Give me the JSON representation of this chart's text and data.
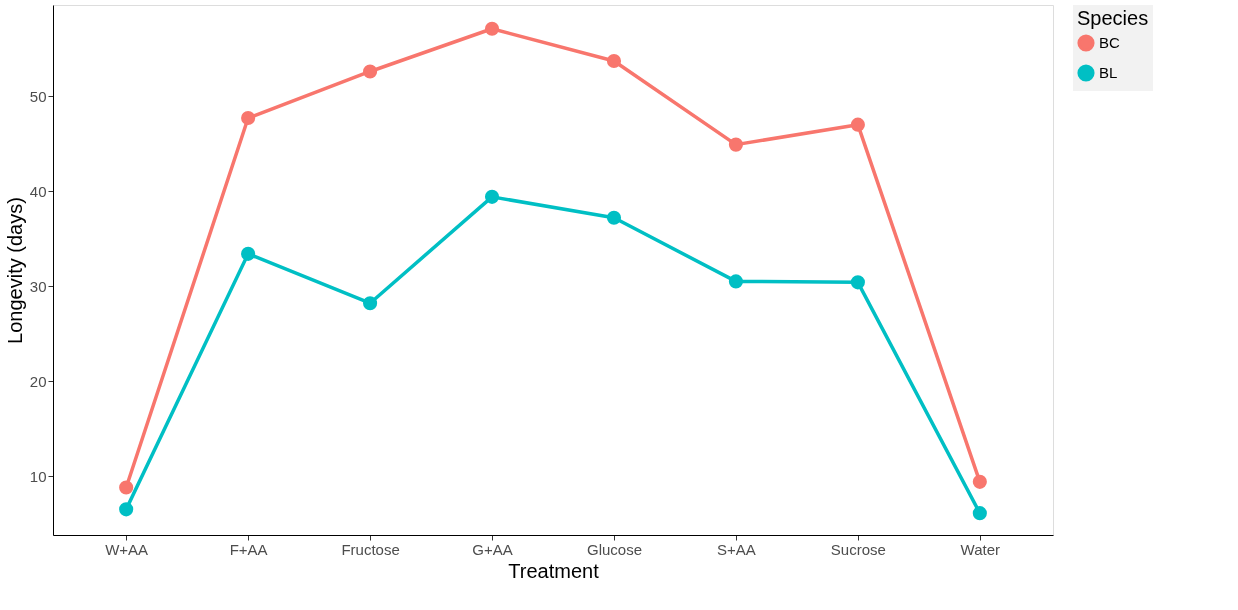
{
  "chart_data": {
    "type": "line",
    "xlabel": "Treatment",
    "ylabel": "Longevity (days)",
    "legend_title": "Species",
    "categories": [
      "W+AA",
      "F+AA",
      "Fructose",
      "G+AA",
      "Glucose",
      "S+AA",
      "Sucrose",
      "Water"
    ],
    "series": [
      {
        "name": "BC",
        "color": "#f8766d",
        "values": [
          8.8,
          47.7,
          52.6,
          57.1,
          53.7,
          44.9,
          47.0,
          9.4
        ]
      },
      {
        "name": "BL",
        "color": "#00bfc4",
        "values": [
          6.5,
          33.4,
          28.2,
          39.4,
          37.2,
          30.5,
          30.4,
          6.1
        ]
      }
    ],
    "ylim": [
      3.8,
      59.6
    ],
    "yticks": [
      10,
      20,
      30,
      40,
      50
    ],
    "grid": false,
    "legend": "right",
    "marker": "circle",
    "line_style": "solid"
  }
}
